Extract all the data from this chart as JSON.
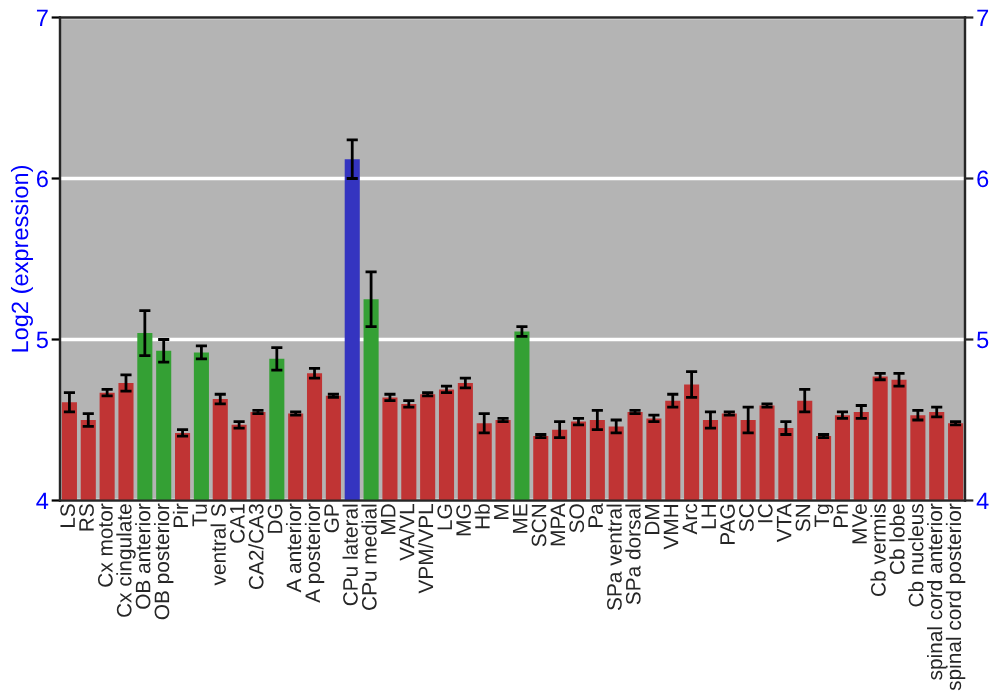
{
  "chart_data": {
    "type": "bar",
    "ylabel": "Log2 (expression)",
    "categories": [
      "LS",
      "RS",
      "Cx motor",
      "Cx cingulate",
      "OB anterior",
      "OB posterior",
      "Pir",
      "Tu",
      "ventral S",
      "CA1",
      "CA2/CA3",
      "DG",
      "A anterior",
      "A posterior",
      "GP",
      "CPu lateral",
      "CPu medial",
      "MD",
      "VA/VL",
      "VPM/VPL",
      "LG",
      "MG",
      "Hb",
      "M",
      "ME",
      "SCN",
      "MPA",
      "SO",
      "Pa",
      "SPa ventral",
      "SPa dorsal",
      "DM",
      "VMH",
      "Arc",
      "LH",
      "PAG",
      "SC",
      "IC",
      "VTA",
      "SN",
      "Tg",
      "Pn",
      "MVe",
      "Cb vermis",
      "Cb lobe",
      "Cb nucleus",
      "spinal cord anterior",
      "spinal cord posterior"
    ],
    "values": [
      4.61,
      4.5,
      4.67,
      4.73,
      5.04,
      4.93,
      4.42,
      4.92,
      4.63,
      4.47,
      4.55,
      4.88,
      4.54,
      4.79,
      4.65,
      6.12,
      5.25,
      4.64,
      4.6,
      4.66,
      4.69,
      4.73,
      4.48,
      4.5,
      5.05,
      4.4,
      4.44,
      4.49,
      4.5,
      4.46,
      4.55,
      4.51,
      4.62,
      4.72,
      4.5,
      4.54,
      4.5,
      4.59,
      4.45,
      4.62,
      4.4,
      4.53,
      4.55,
      4.77,
      4.75,
      4.53,
      4.55,
      4.48
    ],
    "errors": [
      0.06,
      0.04,
      0.02,
      0.05,
      0.14,
      0.07,
      0.02,
      0.04,
      0.03,
      0.02,
      0.01,
      0.07,
      0.01,
      0.03,
      0.01,
      0.12,
      0.17,
      0.02,
      0.02,
      0.01,
      0.02,
      0.03,
      0.06,
      0.01,
      0.03,
      0.01,
      0.05,
      0.02,
      0.06,
      0.04,
      0.01,
      0.02,
      0.04,
      0.08,
      0.05,
      0.01,
      0.08,
      0.01,
      0.04,
      0.07,
      0.01,
      0.02,
      0.04,
      0.02,
      0.04,
      0.03,
      0.03,
      0.01
    ],
    "colors": [
      "#c03434",
      "#c03434",
      "#c03434",
      "#c03434",
      "#34a034",
      "#34a034",
      "#c03434",
      "#34a034",
      "#c03434",
      "#c03434",
      "#c03434",
      "#34a034",
      "#c03434",
      "#c03434",
      "#c03434",
      "#3434c0",
      "#34a034",
      "#c03434",
      "#c03434",
      "#c03434",
      "#c03434",
      "#c03434",
      "#c03434",
      "#c03434",
      "#34a034",
      "#c03434",
      "#c03434",
      "#c03434",
      "#c03434",
      "#c03434",
      "#c03434",
      "#c03434",
      "#c03434",
      "#c03434",
      "#c03434",
      "#c03434",
      "#c03434",
      "#c03434",
      "#c03434",
      "#c03434",
      "#c03434",
      "#c03434",
      "#c03434",
      "#c03434",
      "#c03434",
      "#c03434",
      "#c03434",
      "#c03434"
    ],
    "ylim": [
      4,
      7
    ],
    "yticks": [
      4,
      5,
      6,
      7
    ],
    "y2lim": [
      4,
      7
    ],
    "y2ticks": [
      4,
      5,
      6,
      7
    ],
    "grid": "y"
  }
}
